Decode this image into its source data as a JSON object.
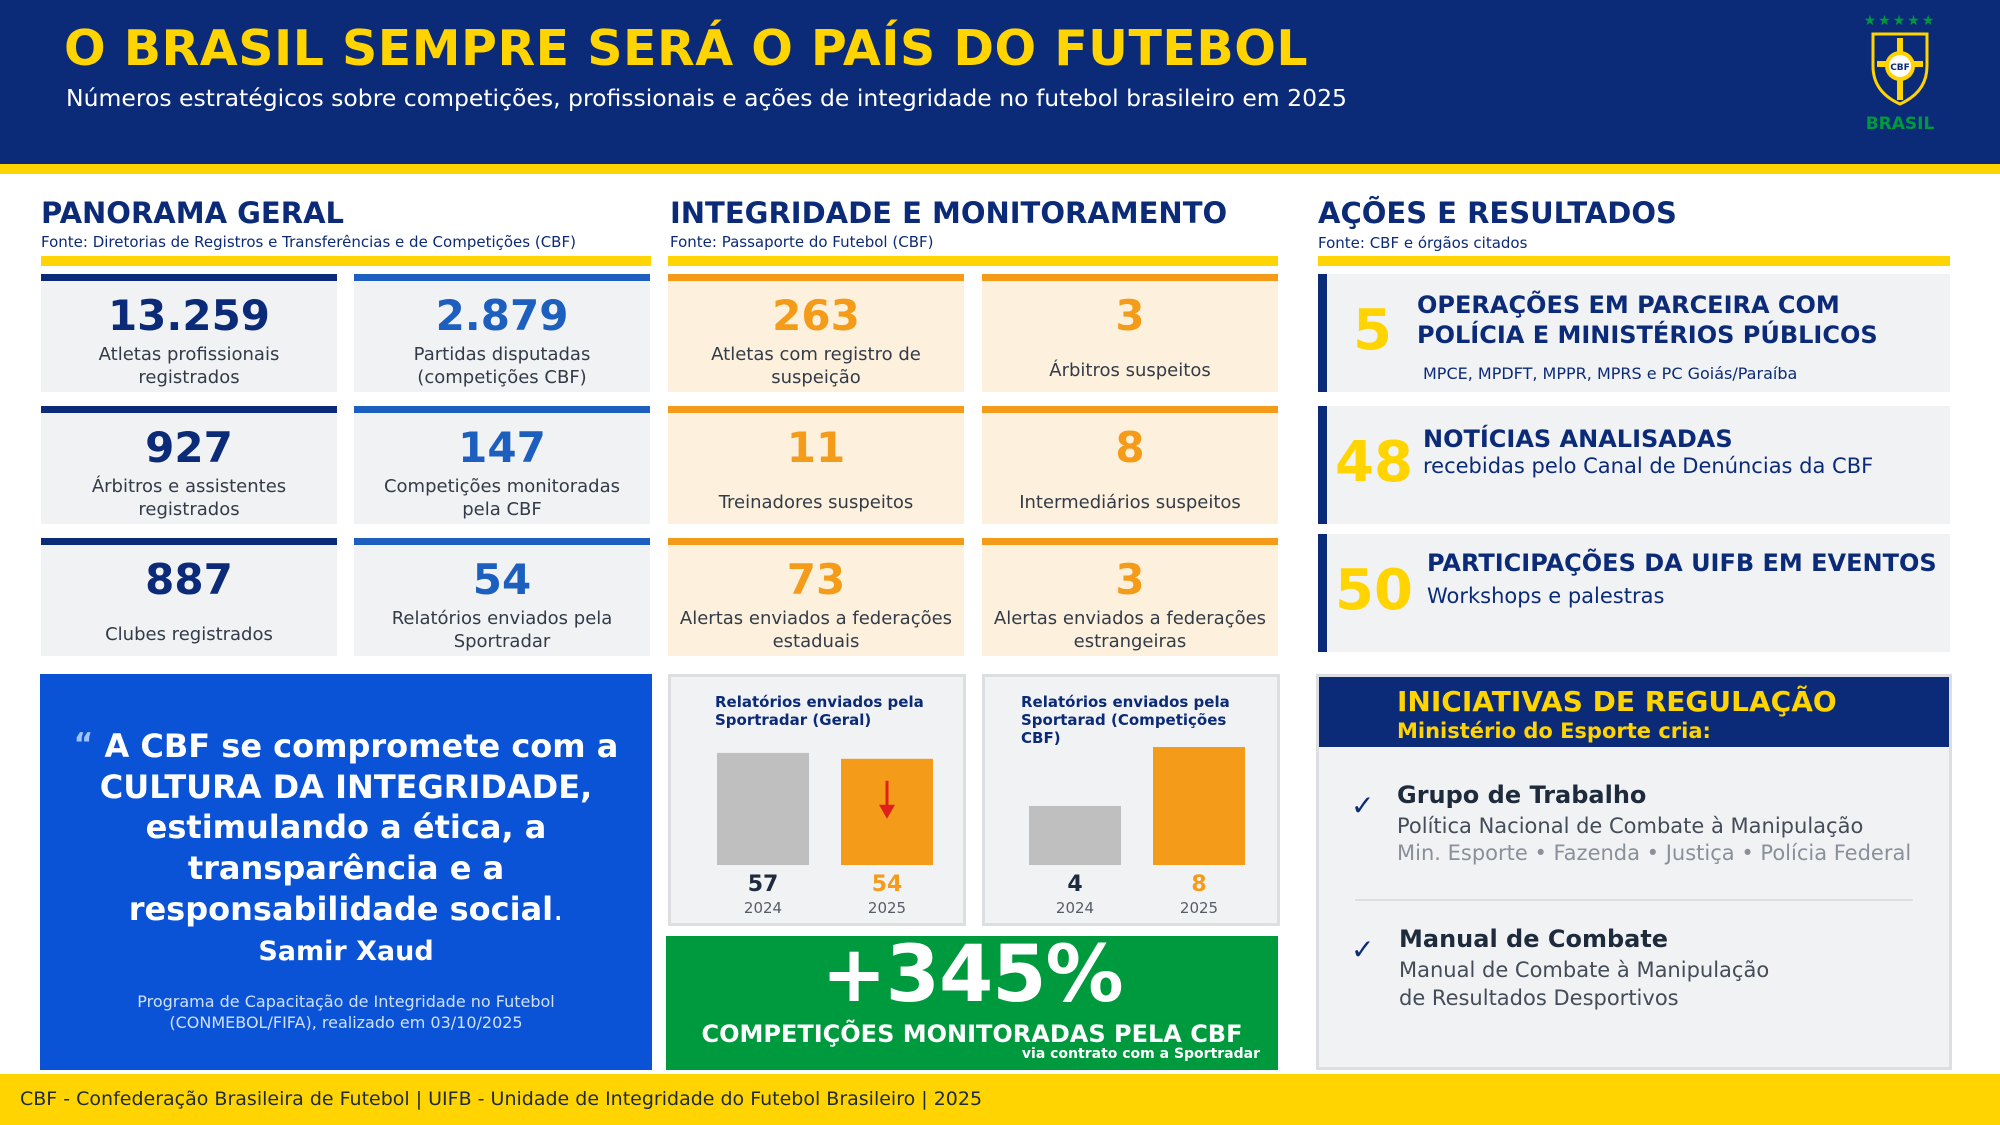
{
  "header": {
    "title": "O BRASIL SEMPRE SERÁ O PAÍS DO FUTEBOL",
    "subtitle": "Números estratégicos sobre competições, profissionais e ações de integridade no futebol brasileiro em 2025",
    "logo_text": "CBF",
    "logo_word": "BRASIL"
  },
  "panorama": {
    "title": "PANORAMA GERAL",
    "source": "Fonte: Diretorias de Registros e Transferências e de Competições (CBF)",
    "stats": [
      {
        "value": "13.259",
        "label": "Atletas profissionais registrados"
      },
      {
        "value": "2.879",
        "label": "Partidas disputadas (competições CBF)"
      },
      {
        "value": "927",
        "label": "Árbitros e assistentes registrados"
      },
      {
        "value": "147",
        "label": "Competições monitoradas pela CBF"
      },
      {
        "value": "887",
        "label": "Clubes registrados"
      },
      {
        "value": "54",
        "label": "Relatórios enviados pela Sportradar"
      }
    ]
  },
  "integridade": {
    "title": "INTEGRIDADE E MONITORAMENTO",
    "source": "Fonte: Passaporte do Futebol (CBF)",
    "stats": [
      {
        "value": "263",
        "label": "Atletas com registro de suspeição"
      },
      {
        "value": "3",
        "label": "Árbitros suspeitos"
      },
      {
        "value": "11",
        "label": "Treinadores suspeitos"
      },
      {
        "value": "8",
        "label": "Intermediários suspeitos"
      },
      {
        "value": "73",
        "label": "Alertas enviados a federações estaduais"
      },
      {
        "value": "3",
        "label": "Alertas enviados a federações estrangeiras"
      }
    ]
  },
  "acoes": {
    "title": "AÇÕES E RESULTADOS",
    "source": "Fonte: CBF e órgãos citados",
    "items": [
      {
        "value": "5",
        "title": "OPERAÇÕES EM PARCEIRA COM POLÍCIA E MINISTÉRIOS PÚBLICOS",
        "detail": "MPCE, MPDFT, MPPR, MPRS e PC Goiás/Paraíba"
      },
      {
        "value": "48",
        "title": "NOTÍCIAS ANALISADAS",
        "detail": "recebidas pelo Canal de Denúncias da CBF"
      },
      {
        "value": "50",
        "title": "PARTICIPAÇÕES DA UIFB EM EVENTOS",
        "detail": "Workshops e palestras"
      }
    ]
  },
  "quote": {
    "mark": "“",
    "text_start": "A CBF se compromete com a CULTURA DA INTEGRIDADE, estimulando a ética, a transparência e a responsabilidade social",
    "text_end": ".",
    "author": "Samir Xaud",
    "note": "Programa de Capacitação de Integridade no Futebol (CONMEBOL/FIFA), realizado em 03/10/2025"
  },
  "chart_data": [
    {
      "type": "bar",
      "title": "Relatórios enviados pela Sportradar (Geral)",
      "categories": [
        "2024",
        "2025"
      ],
      "values": [
        57,
        54
      ],
      "value_labels": [
        "57",
        "54"
      ],
      "colors": [
        "#bfbfbf",
        "#f49c19"
      ],
      "ylim": [
        0,
        60
      ],
      "annotation": "down-arrow"
    },
    {
      "type": "bar",
      "title": "Relatórios enviados pela Sportarad (Competições CBF)",
      "categories": [
        "2024",
        "2025"
      ],
      "values": [
        4,
        8
      ],
      "value_labels": [
        "4",
        "8"
      ],
      "colors": [
        "#bfbfbf",
        "#f49c19"
      ],
      "ylim": [
        0,
        8
      ]
    }
  ],
  "growth": {
    "value": "+345%",
    "label": "COMPETIÇÕES MONITORADAS PELA CBF",
    "note": "via contrato com  a Sportradar"
  },
  "regulacao": {
    "title": "INICIATIVAS DE REGULAÇÃO",
    "subtitle": "Ministério do Esporte cria:",
    "check": "✓",
    "items": [
      {
        "title": "Grupo de Trabalho",
        "desc": "Política Nacional de Combate à Manipulação",
        "agencies": "Min. Esporte • Fazenda • Justiça • Polícia Federal"
      },
      {
        "title": "Manual de Combate",
        "desc": "Manual de Combate à Manipulação",
        "desc2": "de Resultados Desportivos"
      }
    ]
  },
  "footer": {
    "text": "CBF - Confederação Brasileira de Futebol | UIFB - Unidade de Integridade do Futebol Brasileiro | 2025"
  },
  "colors": {
    "navy": "#0b2a78",
    "yellow": "#ffd400",
    "orange": "#f49c19",
    "royal": "#0a52d6",
    "green": "#009a3e",
    "blue_stat": "#1d5fbf",
    "grey_bar": "#bfbfbf"
  }
}
